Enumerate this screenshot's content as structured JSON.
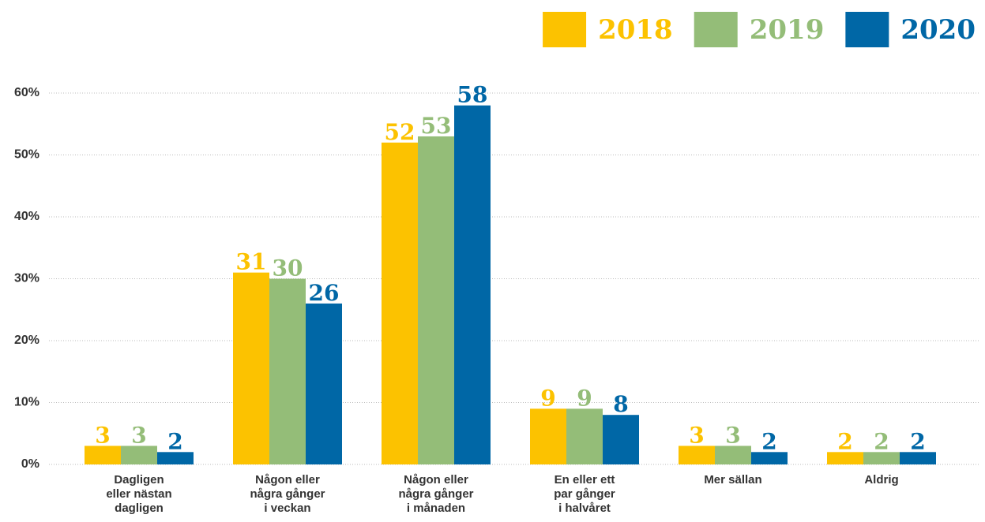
{
  "chart_data": {
    "type": "bar",
    "categories": [
      "Dagligen\neller nästan\ndagligen",
      "Någon eller\nnågra gånger\ni veckan",
      "Någon eller\nnågra gånger\ni månaden",
      "En eller ett\npar gånger\ni halvåret",
      "Mer sällan",
      "Aldrig"
    ],
    "series": [
      {
        "name": "2018",
        "color": "#fcc200",
        "values": [
          3,
          31,
          52,
          9,
          3,
          2
        ]
      },
      {
        "name": "2019",
        "color": "#94bd78",
        "values": [
          3,
          30,
          53,
          9,
          3,
          2
        ]
      },
      {
        "name": "2020",
        "color": "#0067a6",
        "values": [
          2,
          26,
          58,
          8,
          2,
          2
        ]
      }
    ],
    "ylim": [
      0,
      60
    ],
    "yticks": [
      {
        "value": 0,
        "label": "0%"
      },
      {
        "value": 10,
        "label": "10%"
      },
      {
        "value": 20,
        "label": "20%"
      },
      {
        "value": 30,
        "label": "30%"
      },
      {
        "value": 40,
        "label": "40%"
      },
      {
        "value": 50,
        "label": "50%"
      },
      {
        "value": 60,
        "label": "60%"
      }
    ],
    "grid": true,
    "legend": "top-right"
  }
}
